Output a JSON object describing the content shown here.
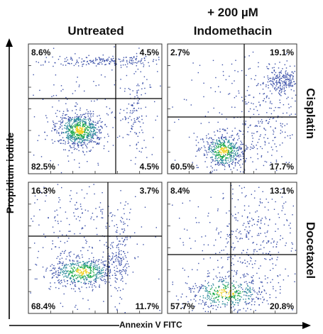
{
  "header": {
    "col1_title": "Untreated",
    "col2_title_line1": "+ 200 µM",
    "col2_title_line2": "Indomethacin"
  },
  "rows": {
    "row1_label": "Cisplatin",
    "row2_label": "Docetaxel"
  },
  "axes": {
    "x_label": "Annexin V FITC",
    "y_label": "Propidium iodide"
  },
  "chart_data": {
    "type": "scatter",
    "subtype": "flow-cytometry-density-quadrant",
    "xlabel": "Annexin V FITC",
    "ylabel": "Propidium iodide",
    "columns": [
      "Untreated",
      "+ 200 µM Indomethacin"
    ],
    "rows": [
      "Cisplatin",
      "Docetaxel"
    ],
    "quadrant_order": [
      "upper-left",
      "upper-right",
      "lower-left",
      "lower-right"
    ],
    "panels": [
      {
        "column": "Untreated",
        "row": "Cisplatin",
        "quadrants": {
          "upper_left": "8.6%",
          "upper_right": "4.5%",
          "lower_left": "82.5%",
          "lower_right": "4.5%"
        }
      },
      {
        "column": "+ 200 µM Indomethacin",
        "row": "Cisplatin",
        "quadrants": {
          "upper_left": "2.7%",
          "upper_right": "19.1%",
          "lower_left": "60.5%",
          "lower_right": "17.7%"
        }
      },
      {
        "column": "Untreated",
        "row": "Docetaxel",
        "quadrants": {
          "upper_left": "16.3%",
          "upper_right": "3.7%",
          "lower_left": "68.4%",
          "lower_right": "11.7%"
        }
      },
      {
        "column": "+ 200 µM Indomethacin",
        "row": "Docetaxel",
        "quadrants": {
          "upper_left": "8.4%",
          "upper_right": "13.1%",
          "lower_left": "57.7%",
          "lower_right": "20.8%"
        }
      }
    ],
    "colors": {
      "sparse": "#3a4fa8",
      "dense": "#1aa84a",
      "core": "#f0d020",
      "axis": "#000000"
    },
    "grid": false,
    "legend": "none"
  }
}
